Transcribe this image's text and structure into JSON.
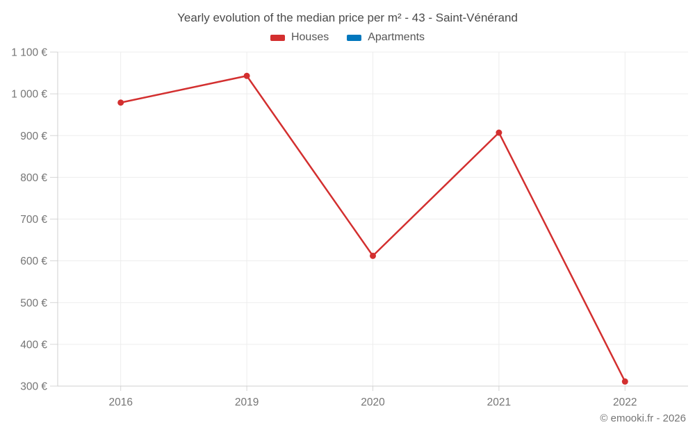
{
  "chart_data": {
    "type": "line",
    "title": "Yearly evolution of the median price per m² - 43 - Saint-Vénérand",
    "categories": [
      "2016",
      "2019",
      "2020",
      "2021",
      "2022"
    ],
    "series": [
      {
        "name": "Houses",
        "color": "#d32f2f",
        "values": [
          979,
          1043,
          612,
          907,
          311
        ]
      },
      {
        "name": "Apartments",
        "color": "#0277bd",
        "values": [
          null,
          null,
          null,
          null,
          null
        ]
      }
    ],
    "xlabel": "",
    "ylabel": "",
    "ylim": [
      300,
      1100
    ],
    "ytick_step": 100,
    "ytick_labels": [
      "300 €",
      "400 €",
      "500 €",
      "600 €",
      "700 €",
      "800 €",
      "900 €",
      "1 000 €",
      "1 100 €"
    ],
    "grid": true,
    "legend_position": "top",
    "attribution": "© emooki.fr - 2026",
    "style": {
      "grid_color": "#ededed",
      "axis_color": "#cfcfcf",
      "tick_color": "#d6d6d6",
      "tick_text_color": "#757575",
      "title_text_color": "#4a4a4a",
      "legend_text_color": "#555555"
    }
  }
}
